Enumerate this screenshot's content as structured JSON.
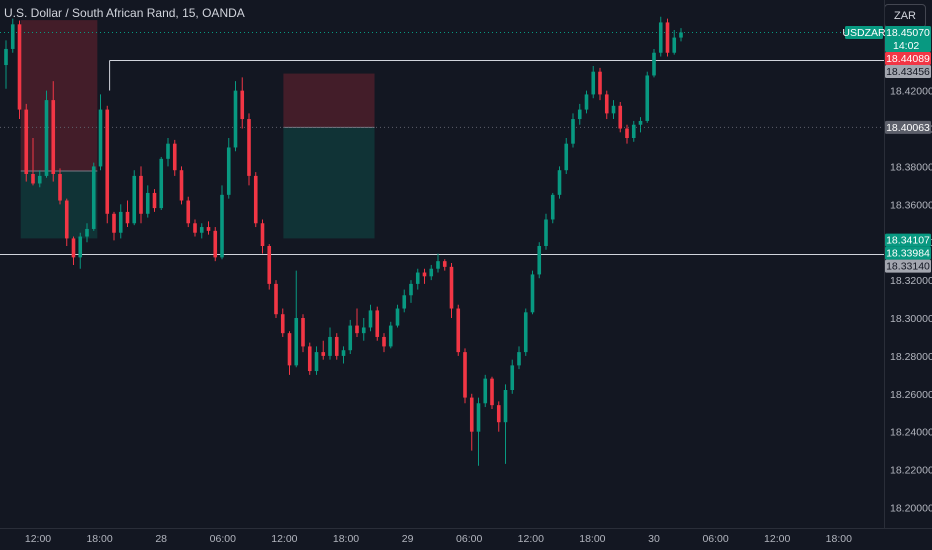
{
  "header": {
    "title": "U.S. Dollar / South African Rand, 15, OANDA",
    "currency_button": "ZAR"
  },
  "chart_data": {
    "type": "candlestick",
    "symbol": "USDZAR",
    "y_ticks": [
      "18.42000",
      "18.40000",
      "18.38000",
      "18.36000",
      "18.34000",
      "18.32000",
      "18.30000",
      "18.28000",
      "18.26000",
      "18.24000",
      "18.22000",
      "18.20000"
    ],
    "y_tick_values": [
      18.42,
      18.4,
      18.38,
      18.36,
      18.34,
      18.32,
      18.3,
      18.28,
      18.26,
      18.24,
      18.22,
      18.2
    ],
    "x_ticks": [
      "12:00",
      "18:00",
      "28",
      "06:00",
      "12:00",
      "18:00",
      "29",
      "06:00",
      "12:00",
      "18:00",
      "30",
      "06:00",
      "12:00",
      "18:00"
    ],
    "ylim": [
      18.1955,
      18.4615
    ],
    "price_tags": [
      {
        "label": "USDZAR",
        "price": 18.4507,
        "color": "#089981"
      },
      {
        "label": "18.45070",
        "price": 18.4507,
        "color": "#089981",
        "sub": "14:02"
      },
      {
        "label": "18.44089",
        "price": 18.44089,
        "color": "#f23645"
      },
      {
        "label": "18.43456",
        "price": 18.43456,
        "color": "#a3a6af"
      },
      {
        "label": "18.40063",
        "price": 18.40063,
        "color": "#5d606b"
      },
      {
        "label": "18.34107",
        "price": 18.34107,
        "color": "#089981"
      },
      {
        "label": "18.33984",
        "price": 18.33984,
        "color": "#089981"
      },
      {
        "label": "18.33140",
        "price": 18.3314,
        "color": "#a3a6af"
      }
    ],
    "horizontal_levels": [
      18.4507,
      18.4359,
      18.40063,
      18.3335
    ],
    "position_tools": [
      {
        "type": "short",
        "x0": "11:00",
        "x1": "16:00",
        "entry": 18.3776,
        "target": 18.342,
        "stop": 18.4572
      },
      {
        "type": "short",
        "x0": "12:00",
        "x1": "22:00",
        "entry": 18.4006,
        "target": 18.342,
        "stop": 18.429
      }
    ],
    "candles_ohlc": [
      [
        18.4335,
        18.4465,
        18.421,
        18.442
      ],
      [
        18.442,
        18.458,
        18.44,
        18.455
      ],
      [
        18.455,
        18.457,
        18.405,
        18.41
      ],
      [
        18.41,
        18.413,
        18.372,
        18.376
      ],
      [
        18.376,
        18.395,
        18.37,
        18.371
      ],
      [
        18.371,
        18.378,
        18.369,
        18.375
      ],
      [
        18.375,
        18.42,
        18.374,
        18.415
      ],
      [
        18.415,
        18.425,
        18.372,
        18.376
      ],
      [
        18.376,
        18.379,
        18.36,
        18.362
      ],
      [
        18.362,
        18.363,
        18.338,
        18.342
      ],
      [
        18.342,
        18.343,
        18.328,
        18.332
      ],
      [
        18.332,
        18.345,
        18.326,
        18.343
      ],
      [
        18.343,
        18.35,
        18.34,
        18.347
      ],
      [
        18.347,
        18.382,
        18.346,
        18.38
      ],
      [
        18.38,
        18.418,
        18.378,
        18.41
      ],
      [
        18.41,
        18.412,
        18.35,
        18.355
      ],
      [
        18.355,
        18.356,
        18.341,
        18.345
      ],
      [
        18.345,
        18.36,
        18.342,
        18.356
      ],
      [
        18.356,
        18.362,
        18.348,
        18.35
      ],
      [
        18.35,
        18.378,
        18.349,
        18.375
      ],
      [
        18.375,
        18.38,
        18.35,
        18.355
      ],
      [
        18.355,
        18.37,
        18.353,
        18.366
      ],
      [
        18.366,
        18.368,
        18.356,
        18.358
      ],
      [
        18.358,
        18.385,
        18.357,
        18.384
      ],
      [
        18.384,
        18.395,
        18.38,
        18.392
      ],
      [
        18.392,
        18.394,
        18.375,
        18.378
      ],
      [
        18.378,
        18.38,
        18.36,
        18.362
      ],
      [
        18.362,
        18.364,
        18.348,
        18.35
      ],
      [
        18.35,
        18.352,
        18.343,
        18.345
      ],
      [
        18.345,
        18.35,
        18.342,
        18.348
      ],
      [
        18.348,
        18.351,
        18.344,
        18.346
      ],
      [
        18.346,
        18.348,
        18.33,
        18.332
      ],
      [
        18.332,
        18.37,
        18.331,
        18.365
      ],
      [
        18.365,
        18.395,
        18.363,
        18.39
      ],
      [
        18.39,
        18.425,
        18.388,
        18.42
      ],
      [
        18.42,
        18.427,
        18.4,
        18.405
      ],
      [
        18.405,
        18.408,
        18.37,
        18.375
      ],
      [
        18.375,
        18.377,
        18.348,
        18.35
      ],
      [
        18.35,
        18.352,
        18.334,
        18.338
      ],
      [
        18.338,
        18.339,
        18.315,
        18.318
      ],
      [
        18.318,
        18.32,
        18.3,
        18.302
      ],
      [
        18.302,
        18.305,
        18.29,
        18.292
      ],
      [
        18.292,
        18.293,
        18.27,
        18.275
      ],
      [
        18.275,
        18.325,
        18.274,
        18.3
      ],
      [
        18.3,
        18.302,
        18.282,
        18.285
      ],
      [
        18.285,
        18.287,
        18.27,
        18.272
      ],
      [
        18.272,
        18.285,
        18.27,
        18.282
      ],
      [
        18.282,
        18.288,
        18.278,
        18.28
      ],
      [
        18.28,
        18.295,
        18.278,
        18.29
      ],
      [
        18.29,
        18.292,
        18.278,
        18.28
      ],
      [
        18.28,
        18.285,
        18.276,
        18.283
      ],
      [
        18.283,
        18.299,
        18.281,
        18.296
      ],
      [
        18.296,
        18.305,
        18.29,
        18.292
      ],
      [
        18.292,
        18.3,
        18.288,
        18.295
      ],
      [
        18.295,
        18.307,
        18.293,
        18.304
      ],
      [
        18.304,
        18.306,
        18.288,
        18.29
      ],
      [
        18.29,
        18.292,
        18.282,
        18.285
      ],
      [
        18.285,
        18.298,
        18.284,
        18.296
      ],
      [
        18.296,
        18.307,
        18.295,
        18.305
      ],
      [
        18.305,
        18.315,
        18.303,
        18.312
      ],
      [
        18.312,
        18.32,
        18.308,
        18.318
      ],
      [
        18.318,
        18.326,
        18.315,
        18.324
      ],
      [
        18.324,
        18.326,
        18.318,
        18.322
      ],
      [
        18.322,
        18.328,
        18.32,
        18.326
      ],
      [
        18.326,
        18.334,
        18.324,
        18.33
      ],
      [
        18.33,
        18.331,
        18.325,
        18.327
      ],
      [
        18.327,
        18.329,
        18.3,
        18.305
      ],
      [
        18.305,
        18.307,
        18.28,
        18.282
      ],
      [
        18.282,
        18.284,
        18.255,
        18.258
      ],
      [
        18.258,
        18.26,
        18.23,
        18.24
      ],
      [
        18.24,
        18.258,
        18.222,
        18.255
      ],
      [
        18.255,
        18.27,
        18.253,
        18.268
      ],
      [
        18.268,
        18.269,
        18.252,
        18.254
      ],
      [
        18.254,
        18.256,
        18.24,
        18.245
      ],
      [
        18.245,
        18.265,
        18.223,
        18.262
      ],
      [
        18.262,
        18.278,
        18.26,
        18.275
      ],
      [
        18.275,
        18.285,
        18.273,
        18.282
      ],
      [
        18.282,
        18.305,
        18.28,
        18.303
      ],
      [
        18.303,
        18.325,
        18.302,
        18.323
      ],
      [
        18.323,
        18.34,
        18.321,
        18.338
      ],
      [
        18.338,
        18.355,
        18.336,
        18.352
      ],
      [
        18.352,
        18.366,
        18.35,
        18.365
      ],
      [
        18.365,
        18.38,
        18.363,
        18.378
      ],
      [
        18.378,
        18.395,
        18.376,
        18.392
      ],
      [
        18.392,
        18.408,
        18.39,
        18.405
      ],
      [
        18.405,
        18.413,
        18.402,
        18.41
      ],
      [
        18.41,
        18.42,
        18.408,
        18.418
      ],
      [
        18.418,
        18.433,
        18.416,
        18.43
      ],
      [
        18.43,
        18.432,
        18.415,
        18.418
      ],
      [
        18.418,
        18.42,
        18.405,
        18.408
      ],
      [
        18.408,
        18.415,
        18.405,
        18.412
      ],
      [
        18.412,
        18.414,
        18.398,
        18.4
      ],
      [
        18.4,
        18.402,
        18.392,
        18.395
      ],
      [
        18.395,
        18.404,
        18.393,
        18.402
      ],
      [
        18.402,
        18.406,
        18.398,
        18.404
      ],
      [
        18.404,
        18.43,
        18.403,
        18.428
      ],
      [
        18.428,
        18.442,
        18.427,
        18.44
      ],
      [
        18.44,
        18.459,
        18.438,
        18.456
      ],
      [
        18.456,
        18.458,
        18.438,
        18.44
      ],
      [
        18.44,
        18.452,
        18.439,
        18.448
      ],
      [
        18.448,
        18.453,
        18.446,
        18.4507
      ]
    ]
  }
}
